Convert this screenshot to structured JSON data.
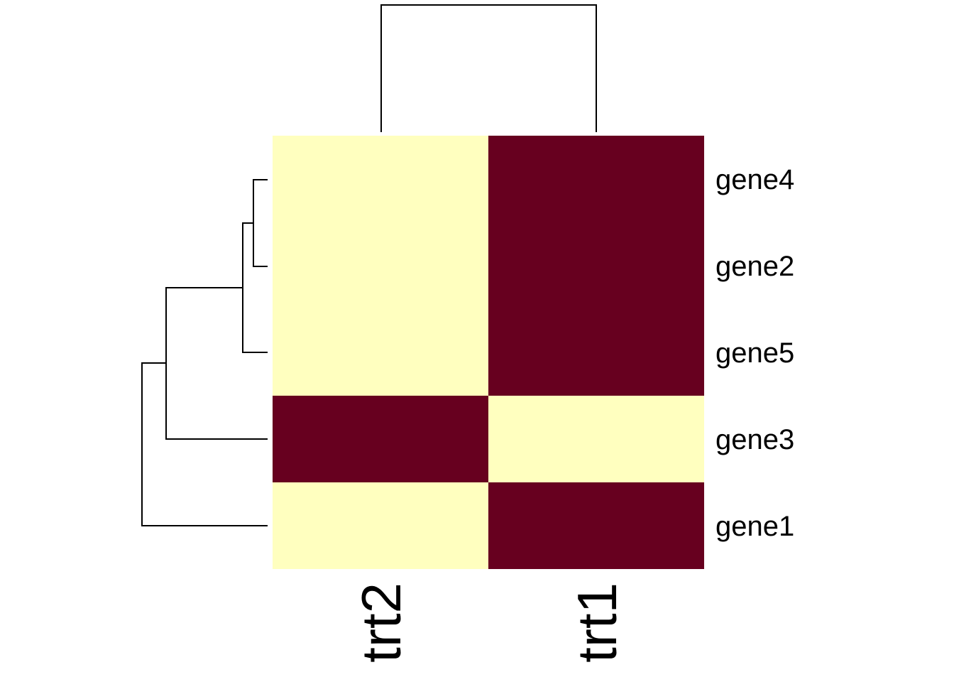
{
  "chart_data": {
    "type": "heatmap",
    "title": "",
    "xlabel": "",
    "ylabel": "",
    "columns": [
      "trt2",
      "trt1"
    ],
    "rows": [
      "gene4",
      "gene2",
      "gene5",
      "gene3",
      "gene1"
    ],
    "values": [
      [
        0,
        1
      ],
      [
        0,
        1
      ],
      [
        0,
        1
      ],
      [
        1,
        0
      ],
      [
        0,
        1
      ]
    ],
    "colors": {
      "low": "#FFFFBF",
      "high": "#67001F"
    },
    "row_dendrogram": true,
    "column_dendrogram": true,
    "grid": false,
    "legend": "none"
  }
}
